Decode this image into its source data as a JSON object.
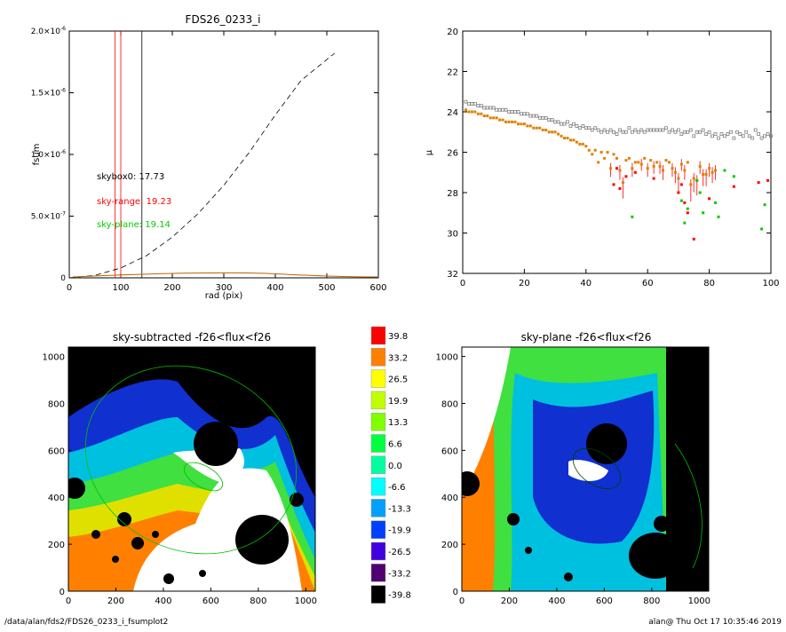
{
  "footer": {
    "left": "/data/alan/fds2/FDS26_0233_i_fsumplot2",
    "right": "alan@  Thu Oct 17 10:35:46 2019"
  },
  "chart_data": [
    {
      "type": "line",
      "title": "FDS26_0233_i",
      "xlabel": "rad (pix)",
      "ylabel": "fsum",
      "xlim": [
        0,
        600
      ],
      "ylim": [
        0,
        2e-06
      ],
      "xticks": [
        "0",
        "100",
        "200",
        "300",
        "400",
        "500",
        "600"
      ],
      "yticks": [
        "0",
        "5.0×10",
        "1.0×10",
        "1.5×10",
        "2.0×10"
      ],
      "yticks_exp": [
        "",
        "-7",
        "-6",
        "-6",
        "-6"
      ],
      "series": [
        {
          "name": "",
          "style": "dashed",
          "color": "#000000",
          "x": [
            0,
            50,
            100,
            150,
            200,
            250,
            300,
            350,
            400,
            450,
            515
          ],
          "y": [
            0,
            2e-08,
            8e-08,
            1.8e-07,
            3.3e-07,
            5.2e-07,
            7.5e-07,
            1.02e-06,
            1.32e-06,
            1.6e-06,
            1.82e-06
          ]
        }
      ],
      "vlines": [
        {
          "x": 89,
          "color": "#ff0000"
        },
        {
          "x": 100,
          "color": "#ff0000"
        },
        {
          "x": 141,
          "color": "#000000"
        }
      ],
      "annotations": [
        {
          "text": "skybox0: 17.73",
          "color": "#000000"
        },
        {
          "text": "sky-range: 19.23",
          "color": "#ff0000"
        },
        {
          "text": "sky-plane: 19.14",
          "color": "#00cc00"
        }
      ]
    },
    {
      "type": "scatter",
      "title": "",
      "xlabel": "",
      "ylabel": "μ",
      "xlim": [
        0,
        100
      ],
      "ylim": [
        32,
        20
      ],
      "xticks": [
        "0",
        "20",
        "40",
        "60",
        "80",
        "100"
      ],
      "yticks": [
        "20",
        "22",
        "24",
        "26",
        "28",
        "30",
        "32"
      ],
      "series": [
        {
          "name": "",
          "color": "#808080",
          "x": [
            1,
            2,
            3,
            4,
            5,
            6,
            7,
            8,
            9,
            10,
            11,
            12,
            13,
            14,
            15,
            16,
            17,
            18,
            19,
            20,
            21,
            22,
            23,
            24,
            25,
            26,
            27,
            28,
            29,
            30,
            31,
            32,
            33,
            34,
            35,
            36,
            37,
            38,
            39,
            40,
            41,
            42,
            43,
            44,
            45,
            46,
            47,
            48,
            49,
            50,
            51,
            52,
            53,
            54,
            55,
            56,
            57,
            58,
            59,
            60,
            61,
            62,
            63,
            64,
            65,
            66,
            67,
            68,
            69,
            70,
            71,
            72,
            73,
            74,
            75,
            76,
            77,
            78,
            79,
            80,
            81,
            82,
            83,
            84,
            85,
            86,
            87,
            88,
            89,
            90,
            91,
            92,
            93,
            94,
            95,
            96,
            97,
            98,
            99,
            100
          ],
          "y": [
            23.5,
            23.6,
            23.6,
            23.6,
            23.7,
            23.7,
            23.8,
            23.8,
            23.8,
            23.8,
            23.9,
            23.9,
            23.9,
            23.9,
            24.0,
            24.0,
            24.0,
            24.0,
            24.1,
            24.1,
            24.1,
            24.2,
            24.2,
            24.2,
            24.3,
            24.3,
            24.3,
            24.4,
            24.4,
            24.5,
            24.5,
            24.6,
            24.6,
            24.5,
            24.7,
            24.6,
            24.7,
            24.8,
            24.7,
            24.8,
            24.8,
            24.9,
            24.8,
            24.9,
            25.0,
            24.9,
            25.0,
            24.9,
            25.0,
            25.1,
            24.9,
            25.0,
            25.0,
            24.8,
            25.0,
            24.9,
            25.0,
            24.9,
            25.0,
            24.9,
            24.9,
            24.9,
            24.9,
            24.9,
            24.9,
            24.8,
            25.0,
            24.9,
            25.0,
            24.9,
            25.1,
            25.0,
            25.0,
            24.9,
            25.2,
            25.0,
            25.0,
            24.9,
            25.1,
            25.0,
            25.2,
            25.1,
            25.3,
            25.1,
            25.2,
            25.1,
            25.0,
            25.3,
            25.0,
            25.1,
            25.2,
            25.0,
            25.2,
            25.3,
            24.9,
            25.1,
            25.3,
            25.2,
            25.1,
            25.2
          ]
        },
        {
          "name": "",
          "color": "#e08000",
          "x": [
            1,
            2,
            3,
            4,
            5,
            6,
            7,
            8,
            9,
            10,
            11,
            12,
            13,
            14,
            15,
            16,
            17,
            18,
            19,
            20,
            21,
            22,
            23,
            24,
            25,
            26,
            27,
            28,
            29,
            30,
            31,
            32,
            33,
            34,
            35,
            36,
            37,
            38,
            39,
            40,
            41,
            42,
            43,
            44,
            45,
            46,
            47,
            48,
            49,
            50,
            51,
            52,
            53,
            54,
            55,
            56,
            57,
            58,
            59,
            60,
            61,
            62,
            63,
            64,
            65,
            66,
            67,
            68,
            69,
            70,
            71,
            72,
            73,
            74,
            75,
            76,
            77,
            78,
            79,
            80,
            81,
            82
          ],
          "y": [
            23.9,
            24.0,
            24.0,
            24.0,
            24.1,
            24.1,
            24.2,
            24.2,
            24.3,
            24.3,
            24.3,
            24.4,
            24.4,
            24.5,
            24.5,
            24.5,
            24.5,
            24.6,
            24.6,
            24.6,
            24.7,
            24.7,
            24.8,
            24.8,
            24.8,
            24.9,
            24.9,
            25.0,
            25.0,
            25.0,
            25.1,
            25.2,
            25.3,
            25.3,
            25.4,
            25.4,
            25.5,
            25.6,
            25.6,
            25.7,
            25.9,
            26.1,
            25.9,
            26.5,
            26.0,
            26.3,
            26.0,
            26.8,
            26.1,
            26.3,
            26.9,
            27.5,
            26.4,
            26.3,
            26.8,
            26.5,
            26.5,
            26.6,
            26.3,
            26.8,
            26.4,
            26.7,
            26.5,
            26.7,
            26.9,
            26.4,
            26.5,
            26.8,
            27.0,
            27.3,
            26.6,
            26.9,
            26.5,
            27.6,
            27.3,
            27.4,
            26.7,
            27.1,
            27.1,
            26.8,
            27.0,
            26.9
          ]
        },
        {
          "name": "",
          "color": "#ff0000",
          "x": [
            49,
            50,
            51,
            53,
            56,
            62,
            70,
            71,
            72,
            73,
            75,
            80,
            88,
            96,
            99
          ],
          "y": [
            27.6,
            26.8,
            27.8,
            27.2,
            27.0,
            27.3,
            28.0,
            27.6,
            28.5,
            29.0,
            30.3,
            28.3,
            27.7,
            27.5,
            27.4
          ]
        },
        {
          "name": "",
          "color": "#00cc00",
          "x": [
            55,
            71,
            72,
            73,
            76,
            77,
            78,
            82,
            83,
            85,
            88,
            97,
            98
          ],
          "y": [
            29.2,
            28.4,
            29.5,
            28.8,
            27.4,
            28.0,
            29.0,
            28.5,
            29.2,
            26.9,
            27.2,
            29.8,
            28.6
          ]
        }
      ]
    },
    {
      "type": "heatmap",
      "title": "sky-subtracted -f26<flux<f26",
      "xlim": [
        0,
        1040
      ],
      "ylim": [
        0,
        1040
      ],
      "xticks": [
        "0",
        "200",
        "400",
        "600",
        "800",
        "1000"
      ],
      "yticks": [
        "0",
        "200",
        "400",
        "600",
        "800",
        "1000"
      ]
    },
    {
      "type": "heatmap",
      "title": "sky-plane -f26<flux<f26",
      "xlim": [
        0,
        1040
      ],
      "ylim": [
        0,
        1040
      ],
      "xticks": [
        "0",
        "200",
        "400",
        "600",
        "800",
        "1000"
      ],
      "yticks": [
        "0",
        "200",
        "400",
        "600",
        "800",
        "1000"
      ]
    }
  ],
  "colorbar": {
    "labels": [
      "39.8",
      "33.2",
      "26.5",
      "19.9",
      "13.3",
      "6.6",
      "0.0",
      "-6.6",
      "-13.3",
      "-19.9",
      "-26.5",
      "-33.2",
      "-39.8"
    ],
    "colors": [
      "#ff0000",
      "#ff8000",
      "#ffff00",
      "#c0ff00",
      "#80ff00",
      "#00ff40",
      "#00ffa0",
      "#00ffff",
      "#00a0ff",
      "#0040ff",
      "#4000e0",
      "#500070",
      "#000000"
    ]
  }
}
